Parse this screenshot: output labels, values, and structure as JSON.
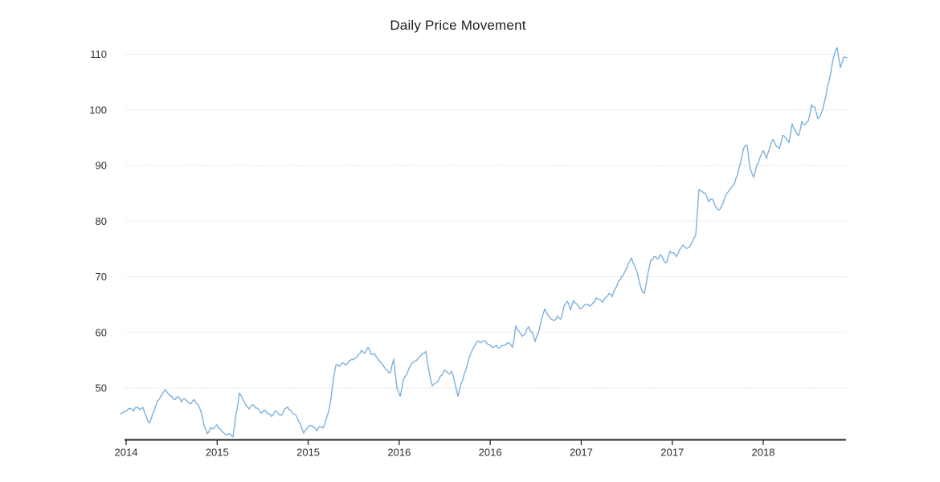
{
  "chart_data": {
    "type": "line",
    "title": "Daily Price Movement",
    "x_tick_labels": [
      "2014",
      "2015",
      "2015",
      "2016",
      "2016",
      "2017",
      "2017",
      "2018"
    ],
    "y_ticks": [
      50,
      60,
      70,
      80,
      90,
      100,
      110
    ],
    "ylim": [
      40.7,
      111.5
    ],
    "grid": "horizontal-dotted",
    "legend": "none",
    "colors": {
      "line": "#7cb1de",
      "grid": "#d4d4d4",
      "axis": "#262626",
      "label": "#2e2e2e",
      "title": "#1c1c1c",
      "background": "#ffffff"
    },
    "series": [
      {
        "values": [
          45.3,
          45.7,
          45.9,
          46.3,
          45.9,
          46.6,
          46.1,
          46.5,
          44.9,
          43.7,
          45.3,
          46.9,
          47.9,
          48.9,
          49.7,
          48.9,
          48.5,
          47.9,
          48.4,
          47.5,
          48.1,
          47.5,
          47.2,
          47.9,
          47.1,
          45.8,
          43.2,
          41.8,
          42.9,
          42.7,
          43.4,
          42.7,
          42.0,
          41.5,
          41.8,
          41.2,
          45.5,
          49.1,
          48.1,
          46.9,
          46.2,
          47.0,
          46.4,
          46.1,
          45.5,
          46.0,
          45.3,
          44.9,
          45.8,
          45.5,
          45.1,
          46.2,
          46.6,
          46.0,
          45.3,
          44.6,
          43.5,
          41.9,
          42.7,
          43.3,
          43.0,
          42.3,
          43.1,
          42.8,
          44.5,
          46.4,
          50.5,
          54.1,
          53.9,
          54.5,
          54.1,
          54.8,
          55.2,
          55.4,
          56.0,
          56.8,
          56.2,
          57.3,
          56.0,
          56.2,
          55.3,
          54.6,
          53.8,
          53.2,
          52.8,
          55.2,
          50.0,
          48.5,
          51.5,
          52.4,
          53.8,
          54.6,
          54.9,
          55.6,
          56.2,
          56.6,
          53.0,
          50.4,
          50.9,
          51.4,
          52.3,
          53.2,
          52.6,
          53.0,
          51.0,
          48.5,
          50.8,
          52.6,
          54.4,
          56.2,
          57.4,
          58.4,
          58.1,
          58.5,
          58.0,
          57.8,
          57.3,
          57.7,
          57.2,
          57.6,
          57.9,
          58.1,
          57.3,
          61.2,
          60.2,
          59.3,
          59.8,
          61.0,
          60.1,
          58.3,
          59.8,
          62.3,
          64.2,
          63.1,
          62.4,
          62.1,
          63.0,
          62.4,
          64.8,
          65.6,
          64.0,
          65.7,
          65.1,
          64.2,
          64.7,
          65.0,
          64.7,
          65.3,
          66.2,
          65.9,
          65.4,
          66.3,
          67.0,
          66.4,
          67.9,
          69.3,
          70.1,
          71.0,
          72.3,
          73.4,
          71.9,
          70.2,
          67.9,
          67.0,
          70.3,
          73.0,
          73.6,
          73.2,
          74.0,
          72.9,
          72.6,
          74.6,
          74.3,
          73.6,
          74.9,
          75.7,
          75.1,
          75.3,
          76.3,
          77.5,
          85.7,
          85.3,
          85.0,
          83.5,
          84.0,
          82.8,
          82.0,
          82.7,
          84.2,
          85.2,
          86.0,
          86.6,
          88.3,
          90.6,
          93.2,
          93.6,
          89.3,
          87.9,
          90.0,
          91.5,
          92.7,
          91.3,
          93.1,
          94.7,
          93.5,
          93.0,
          95.4,
          94.9,
          94.1,
          97.5,
          96.3,
          95.4,
          97.9,
          97.3,
          98.0,
          100.9,
          100.5,
          98.4,
          99.3,
          101.3,
          104.2,
          106.6,
          109.8,
          111.2,
          107.6,
          109.4,
          109.4
        ]
      }
    ]
  }
}
